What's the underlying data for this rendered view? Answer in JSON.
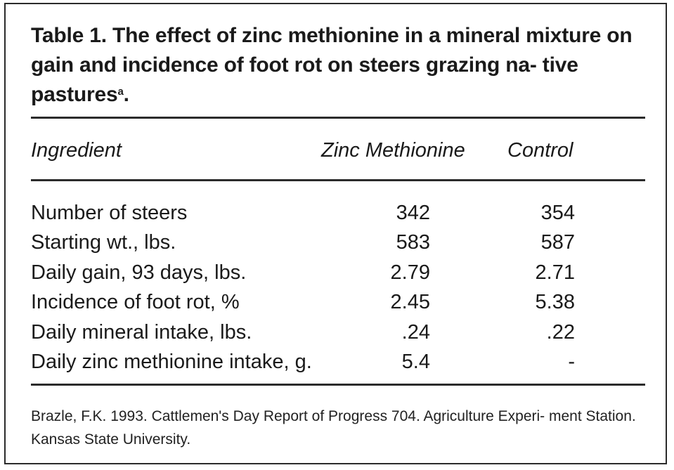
{
  "table": {
    "title_main": "Table 1. The effect of zinc methionine in a mineral mixture on gain and incidence of foot rot on steers grazing na- tive pastures",
    "title_superscript": "a",
    "title_end": ".",
    "headers": {
      "ingredient": "Ingredient",
      "zinc": "Zinc Methionine",
      "control": "Control"
    },
    "rows": [
      {
        "label": "Number of steers",
        "zinc": "342",
        "control": "354"
      },
      {
        "label": "Starting wt., lbs.",
        "zinc": "583",
        "control": "587"
      },
      {
        "label": "Daily gain, 93 days, lbs.",
        "zinc": "2.79",
        "control": "2.71"
      },
      {
        "label": "Incidence of foot rot, %",
        "zinc": "2.45",
        "control": "5.38"
      },
      {
        "label": "Daily mineral intake, lbs.",
        "zinc": ".24",
        "control": ".22"
      },
      {
        "label": "Daily zinc methionine intake, g.",
        "zinc": "5.4",
        "control": "-"
      }
    ],
    "source": "Brazle, F.K. 1993. Cattlemen's Day Report of Progress 704. Agriculture Experi- ment Station. Kansas State University."
  }
}
